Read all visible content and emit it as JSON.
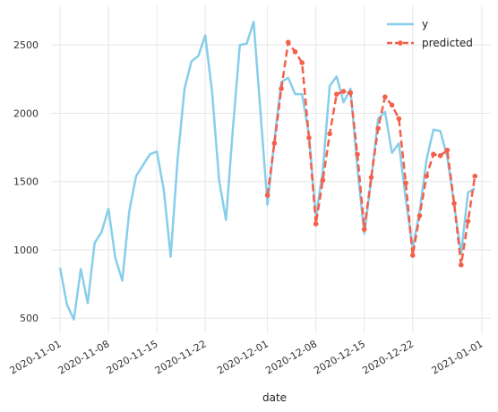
{
  "chart_data": {
    "type": "line",
    "xlabel": "date",
    "ylabel": "",
    "title": "",
    "x_axis": {
      "type": "date",
      "range": [
        "2020-11-01",
        "2021-01-01"
      ],
      "ticks": [
        "2020-11-01",
        "2020-11-08",
        "2020-11-15",
        "2020-11-22",
        "2020-12-01",
        "2020-12-08",
        "2020-12-15",
        "2020-12-22",
        "2021-01-01"
      ]
    },
    "y_axis": {
      "range": [
        390,
        2790
      ],
      "ticks": [
        500,
        1000,
        1500,
        2000,
        2500
      ]
    },
    "grid": true,
    "legend": {
      "position": "top-right"
    },
    "series": [
      {
        "name": "y",
        "color": "#87ceeb",
        "style": "solid",
        "points": [
          [
            "2020-11-01",
            870
          ],
          [
            "2020-11-02",
            600
          ],
          [
            "2020-11-03",
            490
          ],
          [
            "2020-11-04",
            860
          ],
          [
            "2020-11-05",
            610
          ],
          [
            "2020-11-06",
            1050
          ],
          [
            "2020-11-07",
            1130
          ],
          [
            "2020-11-08",
            1300
          ],
          [
            "2020-11-09",
            940
          ],
          [
            "2020-11-10",
            775
          ],
          [
            "2020-11-11",
            1280
          ],
          [
            "2020-11-12",
            1540
          ],
          [
            "2020-11-13",
            1620
          ],
          [
            "2020-11-14",
            1700
          ],
          [
            "2020-11-15",
            1720
          ],
          [
            "2020-11-16",
            1440
          ],
          [
            "2020-11-17",
            950
          ],
          [
            "2020-11-18",
            1660
          ],
          [
            "2020-11-19",
            2180
          ],
          [
            "2020-11-20",
            2380
          ],
          [
            "2020-11-21",
            2420
          ],
          [
            "2020-11-22",
            2570
          ],
          [
            "2020-11-23",
            2150
          ],
          [
            "2020-11-24",
            1510
          ],
          [
            "2020-11-25",
            1220
          ],
          [
            "2020-11-26",
            1890
          ],
          [
            "2020-11-27",
            2500
          ],
          [
            "2020-11-28",
            2510
          ],
          [
            "2020-11-29",
            2670
          ],
          [
            "2020-11-30",
            2000
          ],
          [
            "2020-12-01",
            1330
          ],
          [
            "2020-12-02",
            1800
          ],
          [
            "2020-12-03",
            2230
          ],
          [
            "2020-12-04",
            2260
          ],
          [
            "2020-12-05",
            2140
          ],
          [
            "2020-12-06",
            2140
          ],
          [
            "2020-12-07",
            1840
          ],
          [
            "2020-12-08",
            1240
          ],
          [
            "2020-12-09",
            1580
          ],
          [
            "2020-12-10",
            2200
          ],
          [
            "2020-12-11",
            2270
          ],
          [
            "2020-12-12",
            2080
          ],
          [
            "2020-12-13",
            2180
          ],
          [
            "2020-12-14",
            1600
          ],
          [
            "2020-12-15",
            1120
          ],
          [
            "2020-12-16",
            1510
          ],
          [
            "2020-12-17",
            1960
          ],
          [
            "2020-12-18",
            2010
          ],
          [
            "2020-12-19",
            1710
          ],
          [
            "2020-12-20",
            1780
          ],
          [
            "2020-12-21",
            1370
          ],
          [
            "2020-12-22",
            1010
          ],
          [
            "2020-12-23",
            1280
          ],
          [
            "2020-12-24",
            1660
          ],
          [
            "2020-12-25",
            1880
          ],
          [
            "2020-12-26",
            1870
          ],
          [
            "2020-12-27",
            1680
          ],
          [
            "2020-12-28",
            1330
          ],
          [
            "2020-12-29",
            970
          ],
          [
            "2020-12-30",
            1420
          ],
          [
            "2020-12-31",
            1450
          ]
        ]
      },
      {
        "name": "predicted",
        "color": "#f4604a",
        "style": "dashed",
        "marker": "circle",
        "points": [
          [
            "2020-12-01",
            1400
          ],
          [
            "2020-12-02",
            1780
          ],
          [
            "2020-12-03",
            2180
          ],
          [
            "2020-12-04",
            2520
          ],
          [
            "2020-12-05",
            2450
          ],
          [
            "2020-12-06",
            2370
          ],
          [
            "2020-12-07",
            1820
          ],
          [
            "2020-12-08",
            1190
          ],
          [
            "2020-12-09",
            1510
          ],
          [
            "2020-12-10",
            1850
          ],
          [
            "2020-12-11",
            2140
          ],
          [
            "2020-12-12",
            2160
          ],
          [
            "2020-12-13",
            2150
          ],
          [
            "2020-12-14",
            1700
          ],
          [
            "2020-12-15",
            1150
          ],
          [
            "2020-12-16",
            1530
          ],
          [
            "2020-12-17",
            1890
          ],
          [
            "2020-12-18",
            2120
          ],
          [
            "2020-12-19",
            2060
          ],
          [
            "2020-12-20",
            1960
          ],
          [
            "2020-12-21",
            1490
          ],
          [
            "2020-12-22",
            960
          ],
          [
            "2020-12-23",
            1250
          ],
          [
            "2020-12-24",
            1540
          ],
          [
            "2020-12-25",
            1700
          ],
          [
            "2020-12-26",
            1690
          ],
          [
            "2020-12-27",
            1730
          ],
          [
            "2020-12-28",
            1340
          ],
          [
            "2020-12-29",
            890
          ],
          [
            "2020-12-30",
            1210
          ],
          [
            "2020-12-31",
            1540
          ]
        ]
      }
    ]
  }
}
